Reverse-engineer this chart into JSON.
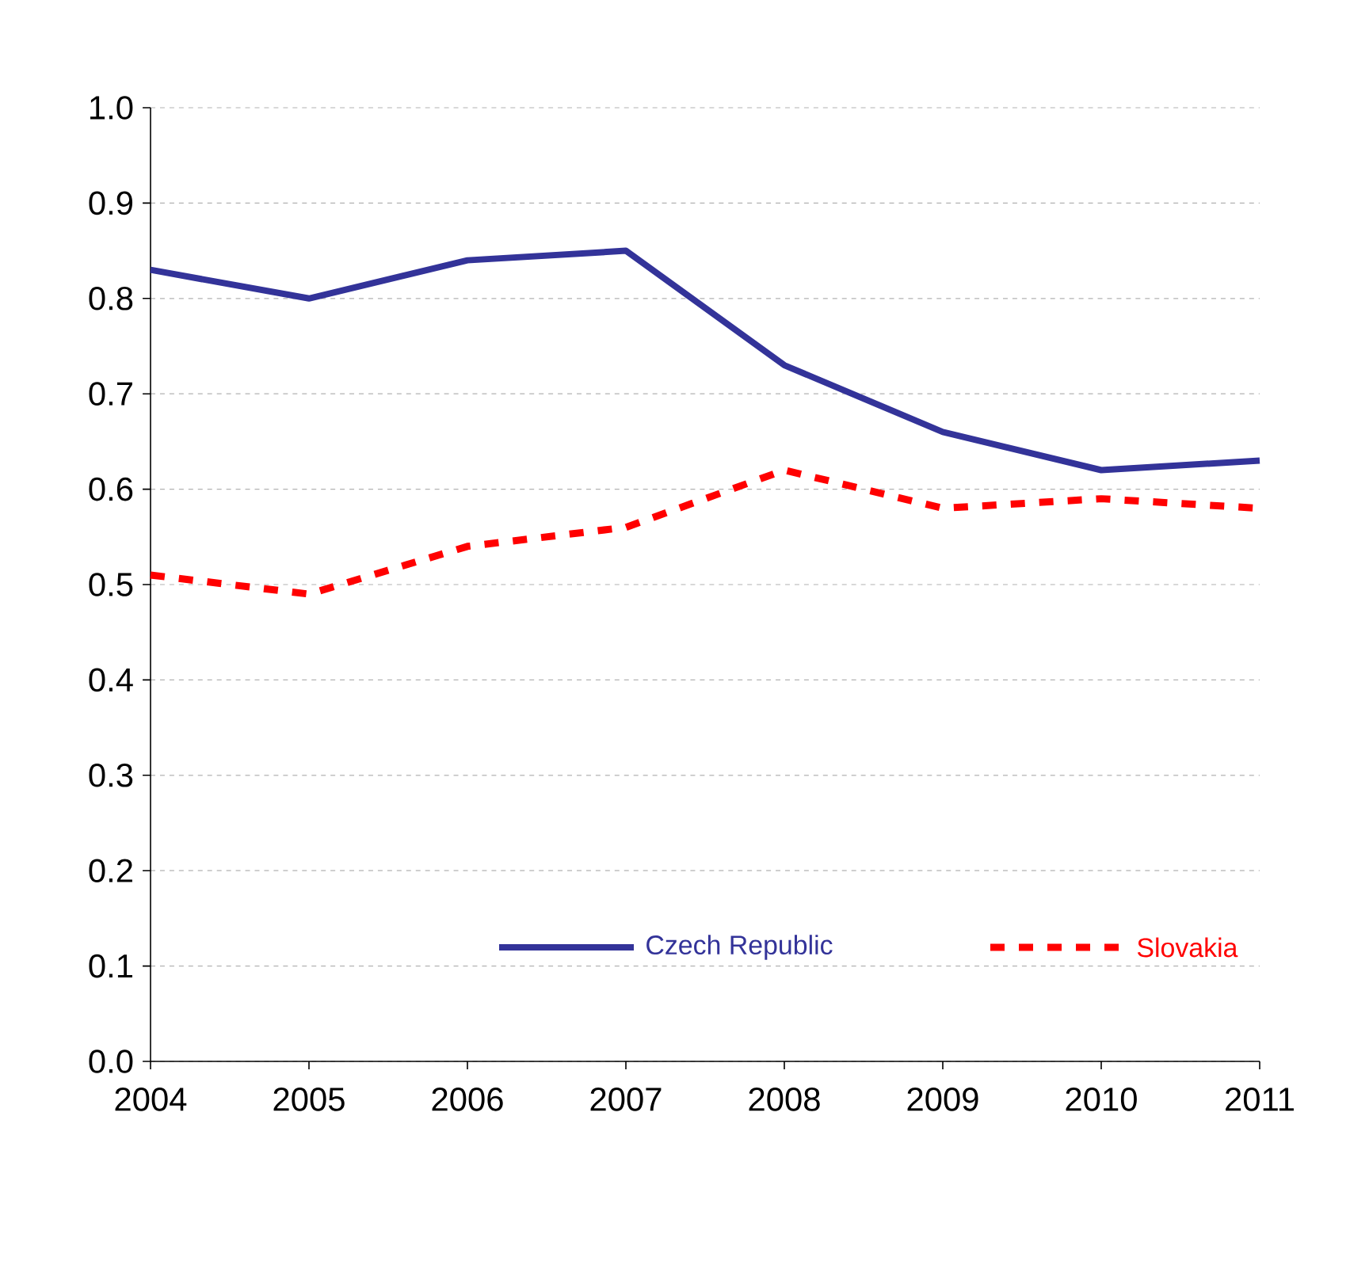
{
  "chart_data": {
    "type": "line",
    "x": [
      2004,
      2005,
      2006,
      2007,
      2008,
      2009,
      2010,
      2011
    ],
    "xlim": [
      2004,
      2011
    ],
    "xticks": [
      2004,
      2005,
      2006,
      2007,
      2008,
      2009,
      2010,
      2011
    ],
    "ylim": [
      0,
      1
    ],
    "yticks": [
      {
        "value": 0,
        "label": "0.0"
      },
      0.1,
      0.2,
      0.3,
      0.4,
      0.5,
      0.6,
      0.7,
      0.8,
      0.9,
      {
        "value": 1,
        "label": "1.0"
      }
    ],
    "grid": "y",
    "legend": "bottom right",
    "series": [
      {
        "name": "Czech Republic",
        "color": "#333399",
        "line_style": "solid",
        "values": [
          0.83,
          0.8,
          0.84,
          0.85,
          0.73,
          0.66,
          0.62,
          0.63
        ]
      },
      {
        "name": "Slovakia",
        "color": "#ff0000",
        "line_style": "dashed",
        "values": [
          0.51,
          0.49,
          0.54,
          0.56,
          0.62,
          0.58,
          0.59,
          0.58
        ]
      }
    ]
  }
}
